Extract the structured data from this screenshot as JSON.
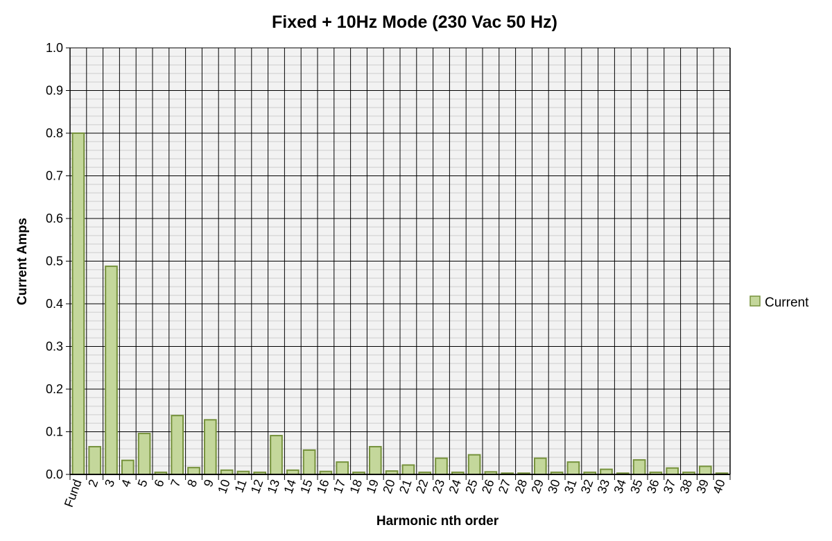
{
  "chart_data": {
    "type": "bar",
    "title": "Fixed + 10Hz Mode (230 Vac 50 Hz)",
    "xlabel": "Harmonic nth order",
    "ylabel": "Current Amps",
    "ylim": [
      0,
      1.0
    ],
    "yticks": [
      "0.0",
      "0.1",
      "0.2",
      "0.3",
      "0.4",
      "0.5",
      "0.6",
      "0.7",
      "0.8",
      "0.9",
      "1.0"
    ],
    "grid": true,
    "legend_position": "right",
    "categories": [
      "Fund",
      "2",
      "3",
      "4",
      "5",
      "6",
      "7",
      "8",
      "9",
      "10",
      "11",
      "12",
      "13",
      "14",
      "15",
      "16",
      "17",
      "18",
      "19",
      "20",
      "21",
      "22",
      "23",
      "24",
      "25",
      "26",
      "27",
      "28",
      "29",
      "30",
      "31",
      "32",
      "33",
      "34",
      "35",
      "36",
      "37",
      "38",
      "39",
      "40"
    ],
    "series": [
      {
        "name": "Current",
        "color": "#c4d79b",
        "edge_color": "#76923c",
        "values": [
          0.8,
          0.065,
          0.488,
          0.033,
          0.096,
          0.005,
          0.138,
          0.016,
          0.128,
          0.01,
          0.007,
          0.005,
          0.091,
          0.01,
          0.057,
          0.007,
          0.029,
          0.005,
          0.065,
          0.008,
          0.022,
          0.005,
          0.038,
          0.005,
          0.046,
          0.006,
          0.003,
          0.003,
          0.038,
          0.005,
          0.029,
          0.005,
          0.012,
          0.003,
          0.034,
          0.005,
          0.015,
          0.005,
          0.019,
          0.003
        ]
      }
    ],
    "plot_background": "#f2f2f2"
  }
}
